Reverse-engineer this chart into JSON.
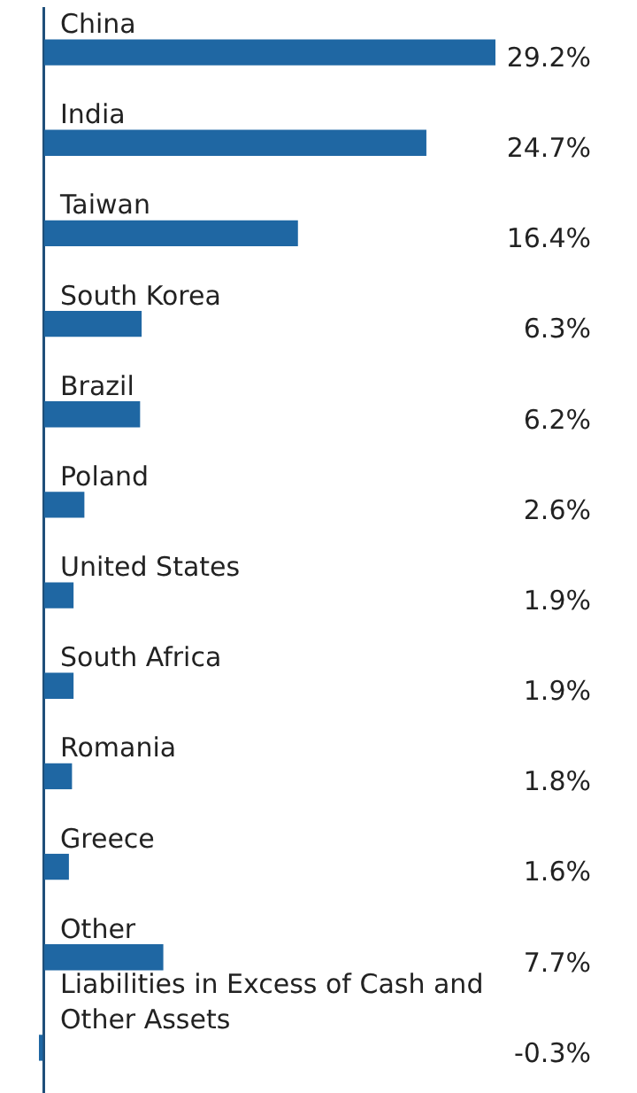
{
  "chart_data": {
    "type": "bar",
    "orientation": "horizontal",
    "categories": [
      "China",
      "India",
      "Taiwan",
      "South Korea",
      "Brazil",
      "Poland",
      "United States",
      "South Africa",
      "Romania",
      "Greece",
      "Other",
      "Liabilities in Excess of Cash and Other Assets"
    ],
    "values": [
      29.2,
      24.7,
      16.4,
      6.3,
      6.2,
      2.6,
      1.9,
      1.9,
      1.8,
      1.6,
      7.7,
      -0.3
    ],
    "value_labels": [
      "29.2%",
      "24.7%",
      "16.4%",
      "6.3%",
      "6.2%",
      "2.6%",
      "1.9%",
      "1.9%",
      "1.8%",
      "1.6%",
      "7.7%",
      "-0.3%"
    ],
    "color": "#1f67a3"
  }
}
